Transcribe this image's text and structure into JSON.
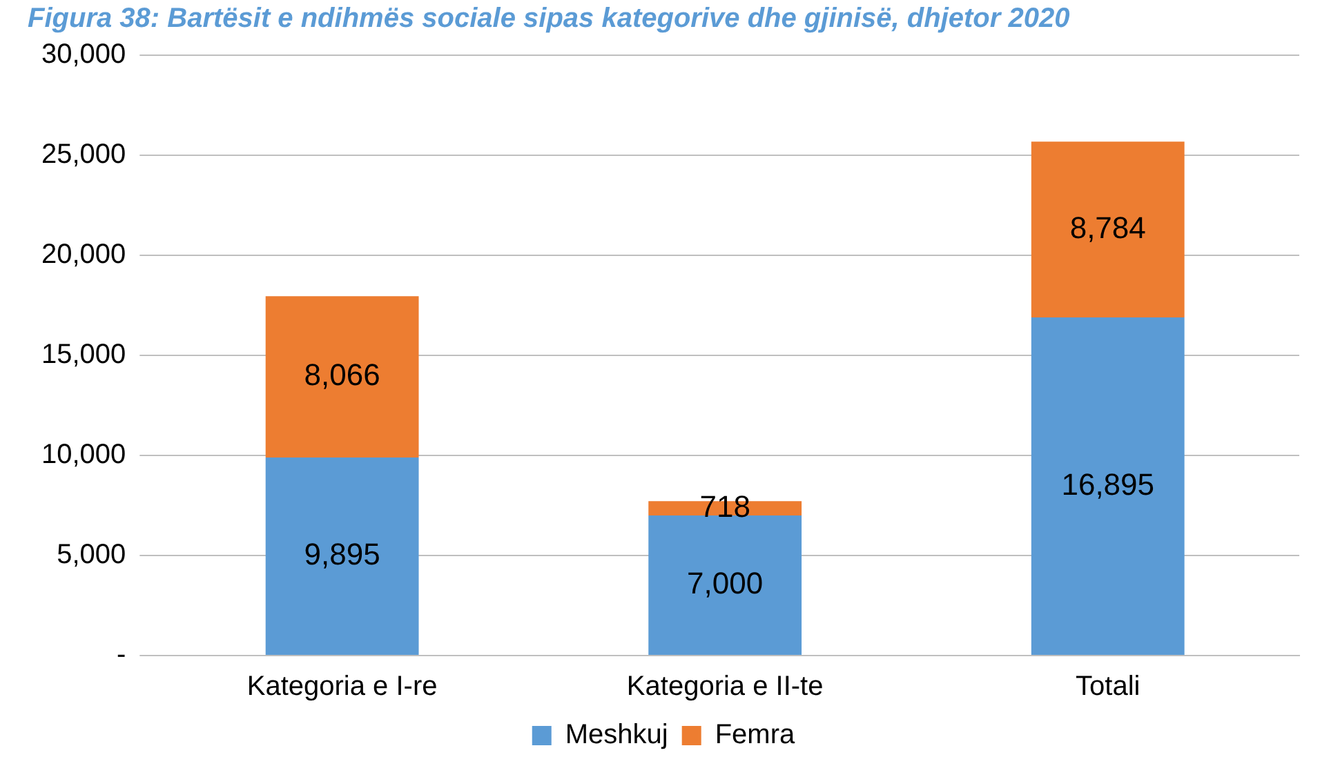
{
  "chart_data": {
    "type": "bar",
    "title": "Figura 38: Bartësit e ndihmës sociale sipas kategorive dhe gjinisë, dhjetor 2020",
    "categories": [
      "Kategoria e I-re",
      "Kategoria e II-te",
      "Totali"
    ],
    "series": [
      {
        "name": "Meshkuj",
        "color": "#5b9bd5",
        "values": [
          9895,
          7000,
          16895
        ],
        "value_labels": [
          "9,895",
          "7,000",
          "16,895"
        ]
      },
      {
        "name": "Femra",
        "color": "#ed7d31",
        "values": [
          8066,
          718,
          8784
        ],
        "value_labels": [
          "8,066",
          "718",
          "8,784"
        ]
      }
    ],
    "stacked": true,
    "ylim": [
      0,
      30000
    ],
    "yticks": [
      {
        "value": 0,
        "label": "-"
      },
      {
        "value": 5000,
        "label": "5,000"
      },
      {
        "value": 10000,
        "label": "10,000"
      },
      {
        "value": 15000,
        "label": "15,000"
      },
      {
        "value": 20000,
        "label": "20,000"
      },
      {
        "value": 25000,
        "label": "25,000"
      },
      {
        "value": 30000,
        "label": "30,000"
      }
    ],
    "grid": "y",
    "legend": "bottom"
  }
}
